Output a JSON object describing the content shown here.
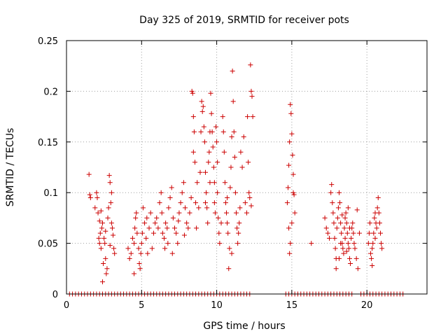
{
  "chart_data": {
    "type": "scatter",
    "title": "Day 325 of 2019, SRMTID for receiver pots",
    "xlabel": "GPS time / hours",
    "ylabel": "SRMTID / TECUs",
    "xlim": [
      0,
      24
    ],
    "ylim": [
      0,
      0.25
    ],
    "xticks": [
      0,
      5,
      10,
      15,
      20
    ],
    "yticks": [
      0,
      0.05,
      0.1,
      0.15,
      0.2,
      0.25
    ],
    "xtick_labels": [
      "0",
      "5",
      "10",
      "15",
      "20"
    ],
    "ytick_labels": [
      "0",
      "0.05",
      "0.1",
      "0.15",
      "0.2",
      "0.25"
    ],
    "grid": true,
    "legend": "none",
    "marker": "plus",
    "color": "#cc0000",
    "series": [
      {
        "points": [
          [
            1.5,
            0.118
          ],
          [
            1.55,
            0.098
          ],
          [
            1.6,
            0.095
          ],
          [
            1.9,
            0.085
          ],
          [
            2.0,
            0.1
          ],
          [
            2.05,
            0.095
          ],
          [
            2.1,
            0.08
          ],
          [
            2.15,
            0.055
          ],
          [
            2.2,
            0.05
          ],
          [
            2.25,
            0.06
          ],
          [
            2.3,
            0.045
          ],
          [
            2.35,
            0.065
          ],
          [
            2.4,
            0.07
          ],
          [
            2.45,
            0.03
          ],
          [
            2.5,
            0.055
          ],
          [
            2.55,
            0.05
          ],
          [
            2.6,
            0.035
          ],
          [
            2.65,
            0.02
          ],
          [
            2.7,
            0.025
          ],
          [
            2.75,
            0.075
          ],
          [
            2.8,
            0.085
          ],
          [
            2.85,
            0.117
          ],
          [
            2.9,
            0.11
          ],
          [
            2.95,
            0.09
          ],
          [
            3.0,
            0.07
          ],
          [
            3.05,
            0.065
          ],
          [
            3.1,
            0.058
          ],
          [
            3.15,
            0.045
          ],
          [
            3.2,
            0.04
          ],
          [
            2.3,
            0.082
          ],
          [
            2.4,
            0.012
          ],
          [
            2.6,
            0.062
          ],
          [
            2.9,
            0.048
          ],
          [
            3.0,
            0.1
          ],
          [
            2.2,
            0.072
          ],
          [
            4.1,
            0.045
          ],
          [
            4.2,
            0.035
          ],
          [
            4.3,
            0.04
          ],
          [
            4.4,
            0.055
          ],
          [
            4.5,
            0.05
          ],
          [
            4.55,
            0.065
          ],
          [
            4.6,
            0.075
          ],
          [
            4.65,
            0.08
          ],
          [
            4.7,
            0.06
          ],
          [
            4.8,
            0.045
          ],
          [
            4.85,
            0.03
          ],
          [
            4.9,
            0.025
          ],
          [
            5.0,
            0.05
          ],
          [
            5.05,
            0.06
          ],
          [
            5.1,
            0.085
          ],
          [
            5.2,
            0.07
          ],
          [
            5.3,
            0.055
          ],
          [
            5.4,
            0.04
          ],
          [
            5.5,
            0.065
          ],
          [
            5.6,
            0.08
          ],
          [
            5.7,
            0.045
          ],
          [
            4.5,
            0.02
          ],
          [
            4.95,
            0.04
          ],
          [
            5.35,
            0.075
          ],
          [
            5.8,
            0.06
          ],
          [
            5.9,
            0.07
          ],
          [
            6.0,
            0.075
          ],
          [
            6.1,
            0.065
          ],
          [
            6.2,
            0.09
          ],
          [
            6.3,
            0.1
          ],
          [
            6.35,
            0.08
          ],
          [
            6.4,
            0.06
          ],
          [
            6.5,
            0.055
          ],
          [
            6.6,
            0.07
          ],
          [
            6.7,
            0.065
          ],
          [
            6.8,
            0.085
          ],
          [
            6.9,
            0.095
          ],
          [
            7.0,
            0.105
          ],
          [
            7.1,
            0.075
          ],
          [
            7.2,
            0.065
          ],
          [
            7.3,
            0.06
          ],
          [
            7.4,
            0.05
          ],
          [
            7.5,
            0.08
          ],
          [
            7.6,
            0.09
          ],
          [
            7.7,
            0.1
          ],
          [
            7.8,
            0.11
          ],
          [
            7.9,
            0.085
          ],
          [
            8.0,
            0.07
          ],
          [
            8.1,
            0.065
          ],
          [
            6.55,
            0.045
          ],
          [
            6.75,
            0.05
          ],
          [
            7.05,
            0.04
          ],
          [
            7.45,
            0.072
          ],
          [
            7.85,
            0.058
          ],
          [
            8.2,
            0.08
          ],
          [
            8.3,
            0.095
          ],
          [
            8.35,
            0.2
          ],
          [
            8.4,
            0.198
          ],
          [
            8.45,
            0.175
          ],
          [
            8.5,
            0.16
          ],
          [
            8.55,
            0.13
          ],
          [
            8.6,
            0.09
          ],
          [
            8.7,
            0.11
          ],
          [
            8.8,
            0.085
          ],
          [
            8.9,
            0.12
          ],
          [
            9.0,
            0.19
          ],
          [
            9.05,
            0.18
          ],
          [
            9.1,
            0.185
          ],
          [
            9.15,
            0.165
          ],
          [
            9.2,
            0.15
          ],
          [
            9.25,
            0.12
          ],
          [
            9.3,
            0.1
          ],
          [
            9.35,
            0.085
          ],
          [
            9.4,
            0.07
          ],
          [
            9.45,
            0.13
          ],
          [
            9.5,
            0.14
          ],
          [
            9.55,
            0.11
          ],
          [
            9.6,
            0.198
          ],
          [
            9.65,
            0.178
          ],
          [
            9.7,
            0.16
          ],
          [
            9.75,
            0.145
          ],
          [
            9.8,
            0.125
          ],
          [
            9.85,
            0.09
          ],
          [
            9.9,
            0.08
          ],
          [
            9.95,
            0.165
          ],
          [
            10.0,
            0.15
          ],
          [
            10.05,
            0.13
          ],
          [
            10.1,
            0.075
          ],
          [
            10.15,
            0.06
          ],
          [
            10.2,
            0.05
          ],
          [
            10.3,
            0.07
          ],
          [
            8.65,
            0.065
          ],
          [
            8.95,
            0.16
          ],
          [
            9.25,
            0.09
          ],
          [
            9.55,
            0.16
          ],
          [
            9.85,
            0.11
          ],
          [
            10.05,
            0.1
          ],
          [
            8.45,
            0.14
          ],
          [
            10.4,
            0.175
          ],
          [
            10.45,
            0.16
          ],
          [
            10.5,
            0.14
          ],
          [
            10.55,
            0.11
          ],
          [
            10.6,
            0.09
          ],
          [
            10.65,
            0.08
          ],
          [
            10.7,
            0.07
          ],
          [
            10.75,
            0.06
          ],
          [
            10.8,
            0.025
          ],
          [
            10.85,
            0.045
          ],
          [
            10.9,
            0.105
          ],
          [
            10.95,
            0.125
          ],
          [
            11.0,
            0.155
          ],
          [
            11.05,
            0.22
          ],
          [
            11.1,
            0.19
          ],
          [
            11.15,
            0.16
          ],
          [
            11.2,
            0.135
          ],
          [
            11.25,
            0.1
          ],
          [
            11.3,
            0.08
          ],
          [
            11.35,
            0.065
          ],
          [
            11.4,
            0.05
          ],
          [
            11.5,
            0.07
          ],
          [
            11.55,
            0.085
          ],
          [
            11.6,
            0.14
          ],
          [
            11.7,
            0.125
          ],
          [
            11.8,
            0.155
          ],
          [
            11.9,
            0.09
          ],
          [
            12.0,
            0.08
          ],
          [
            12.05,
            0.175
          ],
          [
            12.1,
            0.13
          ],
          [
            12.15,
            0.1
          ],
          [
            12.2,
            0.095
          ],
          [
            12.25,
            0.226
          ],
          [
            12.3,
            0.2
          ],
          [
            12.35,
            0.195
          ],
          [
            12.4,
            0.175
          ],
          [
            11.0,
            0.04
          ],
          [
            11.45,
            0.06
          ],
          [
            10.7,
            0.095
          ],
          [
            12.3,
            0.087
          ],
          [
            14.7,
            0.09
          ],
          [
            14.75,
            0.105
          ],
          [
            14.8,
            0.127
          ],
          [
            14.85,
            0.15
          ],
          [
            14.9,
            0.187
          ],
          [
            14.95,
            0.178
          ],
          [
            15.0,
            0.158
          ],
          [
            15.05,
            0.137
          ],
          [
            15.1,
            0.118
          ],
          [
            15.15,
            0.098
          ],
          [
            15.2,
            0.08
          ],
          [
            14.8,
            0.065
          ],
          [
            14.85,
            0.04
          ],
          [
            14.9,
            0.05
          ],
          [
            15.0,
            0.07
          ],
          [
            15.1,
            0.1
          ],
          [
            16.3,
            0.05
          ],
          [
            17.2,
            0.075
          ],
          [
            17.3,
            0.065
          ],
          [
            17.4,
            0.06
          ],
          [
            17.5,
            0.055
          ],
          [
            17.6,
            0.1
          ],
          [
            17.65,
            0.108
          ],
          [
            17.7,
            0.09
          ],
          [
            17.75,
            0.08
          ],
          [
            17.8,
            0.07
          ],
          [
            17.85,
            0.055
          ],
          [
            17.9,
            0.045
          ],
          [
            17.95,
            0.035
          ],
          [
            18.0,
            0.065
          ],
          [
            18.05,
            0.075
          ],
          [
            18.1,
            0.085
          ],
          [
            18.15,
            0.1
          ],
          [
            18.2,
            0.09
          ],
          [
            18.25,
            0.07
          ],
          [
            18.3,
            0.06
          ],
          [
            18.35,
            0.05
          ],
          [
            18.4,
            0.045
          ],
          [
            18.45,
            0.04
          ],
          [
            18.5,
            0.065
          ],
          [
            18.55,
            0.075
          ],
          [
            18.6,
            0.08
          ],
          [
            18.65,
            0.07
          ],
          [
            18.7,
            0.06
          ],
          [
            18.75,
            0.05
          ],
          [
            18.8,
            0.045
          ],
          [
            18.85,
            0.035
          ],
          [
            18.9,
            0.03
          ],
          [
            18.95,
            0.055
          ],
          [
            19.0,
            0.065
          ],
          [
            19.05,
            0.07
          ],
          [
            19.1,
            0.06
          ],
          [
            19.2,
            0.045
          ],
          [
            19.3,
            0.035
          ],
          [
            19.4,
            0.025
          ],
          [
            19.5,
            0.06
          ],
          [
            18.25,
            0.05
          ],
          [
            18.55,
            0.055
          ],
          [
            18.85,
            0.065
          ],
          [
            18.35,
            0.078
          ],
          [
            18.65,
            0.042
          ],
          [
            17.95,
            0.025
          ],
          [
            18.15,
            0.035
          ],
          [
            18.75,
            0.085
          ],
          [
            19.15,
            0.05
          ],
          [
            19.35,
            0.083
          ],
          [
            20.1,
            0.05
          ],
          [
            20.15,
            0.06
          ],
          [
            20.2,
            0.07
          ],
          [
            20.25,
            0.04
          ],
          [
            20.3,
            0.035
          ],
          [
            20.35,
            0.028
          ],
          [
            20.4,
            0.05
          ],
          [
            20.45,
            0.06
          ],
          [
            20.5,
            0.075
          ],
          [
            20.55,
            0.08
          ],
          [
            20.6,
            0.07
          ],
          [
            20.65,
            0.065
          ],
          [
            20.7,
            0.085
          ],
          [
            20.75,
            0.095
          ],
          [
            20.8,
            0.08
          ],
          [
            20.85,
            0.07
          ],
          [
            20.9,
            0.06
          ],
          [
            20.95,
            0.05
          ],
          [
            21.0,
            0.045
          ],
          [
            20.35,
            0.045
          ],
          [
            20.55,
            0.055
          ]
        ],
        "zero_points_x": [
          0.2,
          0.4,
          0.6,
          0.8,
          1.0,
          1.2,
          1.4,
          1.6,
          1.8,
          2.0,
          2.2,
          2.4,
          2.6,
          2.8,
          3.0,
          3.2,
          3.4,
          3.6,
          3.8,
          4.0,
          4.2,
          4.4,
          4.6,
          4.8,
          5.0,
          5.2,
          5.4,
          5.6,
          5.8,
          6.0,
          6.2,
          6.4,
          6.6,
          6.8,
          7.0,
          7.2,
          7.4,
          7.6,
          7.8,
          8.0,
          8.2,
          8.4,
          8.6,
          8.8,
          9.0,
          9.2,
          9.4,
          9.6,
          9.8,
          10.0,
          10.2,
          10.4,
          10.6,
          10.8,
          11.0,
          11.2,
          11.4,
          11.6,
          11.8,
          12.0,
          12.2,
          14.6,
          14.8,
          15.0,
          15.2,
          15.4,
          15.6,
          15.8,
          16.0,
          16.2,
          16.4,
          16.6,
          16.8,
          17.0,
          17.2,
          17.4,
          17.6,
          17.8,
          18.0,
          18.2,
          18.4,
          18.6,
          18.8,
          19.0,
          19.6,
          19.8,
          20.0,
          20.2,
          20.4,
          20.6,
          20.8,
          21.0,
          21.2,
          21.4,
          21.6,
          21.8,
          22.0,
          22.2,
          22.4
        ]
      }
    ]
  }
}
